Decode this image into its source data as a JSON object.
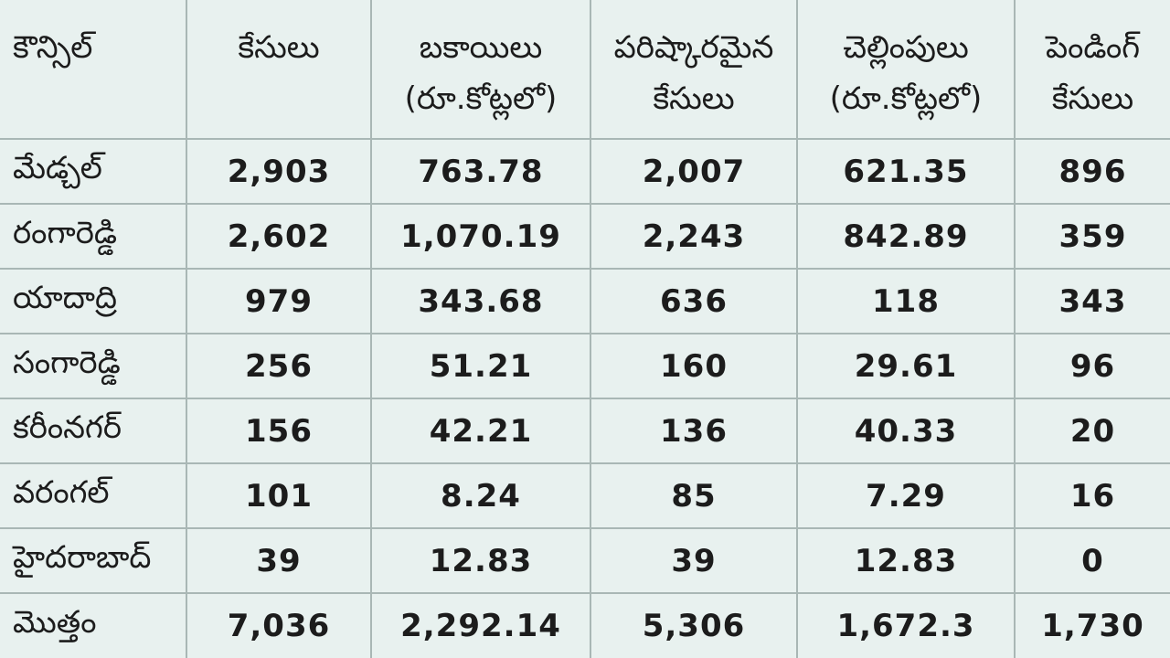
{
  "table": {
    "headers": [
      {
        "line1": "కౌన్సిల్",
        "line2": ""
      },
      {
        "line1": "కేసులు",
        "line2": ""
      },
      {
        "line1": "బకాయిలు",
        "line2": "(రూ.కోట్లలో)"
      },
      {
        "line1": "పరిష్కారమైన",
        "line2": "కేసులు"
      },
      {
        "line1": "చెల్లింపులు",
        "line2": "(రూ.కోట్లలో)"
      },
      {
        "line1": "పెండింగ్",
        "line2": "కేసులు"
      }
    ],
    "rows": [
      {
        "council": "మేడ్చల్",
        "cases": "2,903",
        "arrears": "763.78",
        "resolved": "2,007",
        "payments": "621.35",
        "pending": "896"
      },
      {
        "council": "రంగారెడ్డి",
        "cases": "2,602",
        "arrears": "1,070.19",
        "resolved": "2,243",
        "payments": "842.89",
        "pending": "359"
      },
      {
        "council": "యాదాద్రి",
        "cases": "979",
        "arrears": "343.68",
        "resolved": "636",
        "payments": "118",
        "pending": "343"
      },
      {
        "council": "సంగారెడ్డి",
        "cases": "256",
        "arrears": "51.21",
        "resolved": "160",
        "payments": "29.61",
        "pending": "96"
      },
      {
        "council": "కరీంనగర్",
        "cases": "156",
        "arrears": "42.21",
        "resolved": "136",
        "payments": "40.33",
        "pending": "20"
      },
      {
        "council": "వరంగల్",
        "cases": "101",
        "arrears": "8.24",
        "resolved": "85",
        "payments": "7.29",
        "pending": "16"
      },
      {
        "council": "హైదరాబాద్",
        "cases": "39",
        "arrears": "12.83",
        "resolved": "39",
        "payments": "12.83",
        "pending": "0"
      },
      {
        "council": "మొత్తం",
        "cases": "7,036",
        "arrears": "2,292.14",
        "resolved": "5,306",
        "payments": "1,672.3",
        "pending": "1,730"
      }
    ]
  }
}
